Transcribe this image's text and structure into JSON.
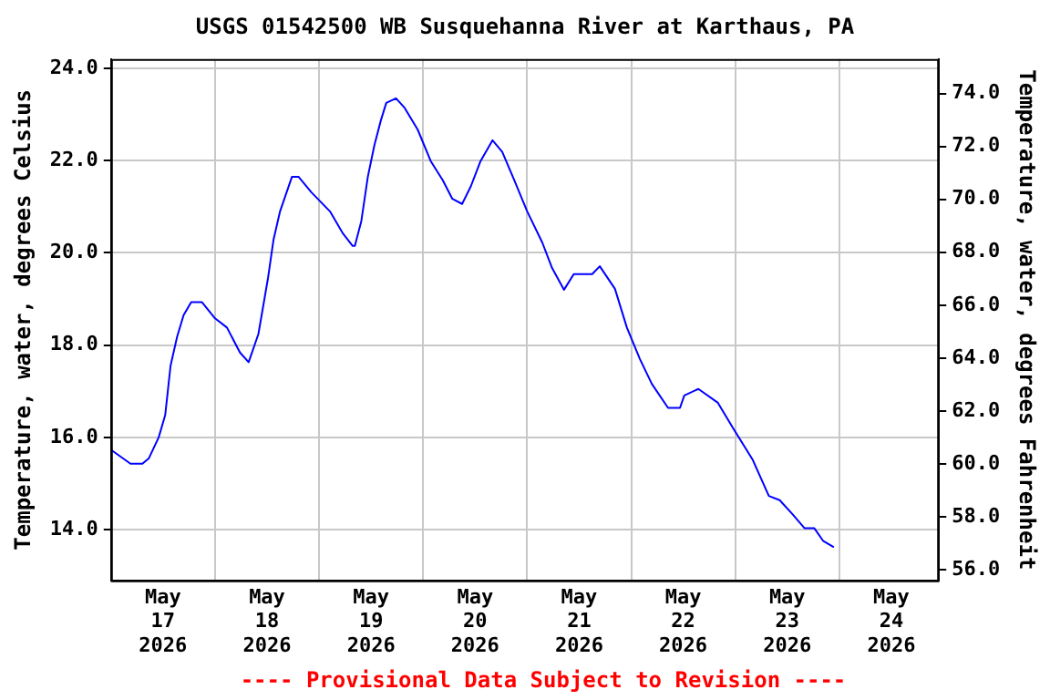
{
  "chart_data": {
    "type": "line",
    "title": "USGS 01542500 WB Susquehanna River at Karthaus, PA",
    "ylabel": "Temperature, water, degrees Celsius",
    "y2label": "Temperature, water, degrees Fahrenheit",
    "annotations": [
      "---- Provisional Data Subject to Revision ----"
    ],
    "x": [
      "2026-05-17T00:00",
      "2026-05-17T04:30",
      "2026-05-17T07:15",
      "2026-05-17T08:45",
      "2026-05-17T11:00",
      "2026-05-17T12:30",
      "2026-05-17T13:45",
      "2026-05-17T15:15",
      "2026-05-17T16:45",
      "2026-05-17T18:30",
      "2026-05-17T21:00",
      "2026-05-18T00:00",
      "2026-05-18T02:45",
      "2026-05-18T05:45",
      "2026-05-18T07:45",
      "2026-05-18T10:00",
      "2026-05-18T12:15",
      "2026-05-18T13:30",
      "2026-05-18T15:00",
      "2026-05-18T17:45",
      "2026-05-18T19:15",
      "2026-05-18T22:15",
      "2026-05-19T02:30",
      "2026-05-19T05:30",
      "2026-05-19T07:45",
      "2026-05-19T08:15",
      "2026-05-19T09:45",
      "2026-05-19T11:15",
      "2026-05-19T12:45",
      "2026-05-19T14:15",
      "2026-05-19T15:30",
      "2026-05-19T17:45",
      "2026-05-19T19:45",
      "2026-05-19T22:45",
      "2026-05-20T01:45",
      "2026-05-20T04:30",
      "2026-05-20T06:45",
      "2026-05-20T09:00",
      "2026-05-20T11:00",
      "2026-05-20T13:15",
      "2026-05-20T16:00",
      "2026-05-20T18:15",
      "2026-05-20T21:00",
      "2026-05-21T00:00",
      "2026-05-21T03:30",
      "2026-05-21T05:45",
      "2026-05-21T08:30",
      "2026-05-21T10:45",
      "2026-05-21T15:00",
      "2026-05-21T16:45",
      "2026-05-21T20:15",
      "2026-05-21T23:00",
      "2026-05-22T02:00",
      "2026-05-22T04:45",
      "2026-05-22T08:30",
      "2026-05-22T11:15",
      "2026-05-22T12:15",
      "2026-05-22T15:30",
      "2026-05-22T20:00",
      "2026-05-22T23:30",
      "2026-05-23T04:00",
      "2026-05-23T07:45",
      "2026-05-23T10:15",
      "2026-05-23T13:15",
      "2026-05-23T16:00",
      "2026-05-23T18:15",
      "2026-05-23T20:15",
      "2026-05-23T22:45"
    ],
    "series": [
      {
        "color": "#0000ff",
        "values": [
          15.73,
          15.43,
          15.43,
          15.55,
          16.0,
          16.48,
          17.56,
          18.18,
          18.65,
          18.93,
          18.93,
          18.58,
          18.38,
          17.84,
          17.63,
          18.24,
          19.47,
          20.29,
          20.9,
          21.65,
          21.65,
          21.31,
          20.9,
          20.42,
          20.15,
          20.15,
          20.69,
          21.65,
          22.33,
          22.87,
          23.25,
          23.35,
          23.14,
          22.67,
          21.99,
          21.58,
          21.17,
          21.06,
          21.44,
          21.99,
          22.44,
          22.19,
          21.58,
          20.9,
          20.22,
          19.67,
          19.2,
          19.54,
          19.54,
          19.71,
          19.22,
          18.38,
          17.7,
          17.16,
          16.64,
          16.64,
          16.91,
          17.05,
          16.75,
          16.2,
          15.52,
          14.73,
          14.64,
          14.33,
          14.03,
          14.03,
          13.76,
          13.62
        ]
      }
    ],
    "xlim": [
      "2026-05-17T00:00",
      "2026-05-24T23:00"
    ],
    "xticks": [
      {
        "value": "2026-05-17T12:00",
        "label": "May 17 2026"
      },
      {
        "value": "2026-05-18T00:00",
        "label": null
      },
      {
        "value": "2026-05-18T12:00",
        "label": "May 18 2026"
      },
      {
        "value": "2026-05-19T00:00",
        "label": null
      },
      {
        "value": "2026-05-19T12:00",
        "label": "May 19 2026"
      },
      {
        "value": "2026-05-20T00:00",
        "label": null
      },
      {
        "value": "2026-05-20T12:00",
        "label": "May 20 2026"
      },
      {
        "value": "2026-05-21T00:00",
        "label": null
      },
      {
        "value": "2026-05-21T12:00",
        "label": "May 21 2026"
      },
      {
        "value": "2026-05-22T00:00",
        "label": null
      },
      {
        "value": "2026-05-22T12:00",
        "label": "May 22 2026"
      },
      {
        "value": "2026-05-23T00:00",
        "label": null
      },
      {
        "value": "2026-05-23T12:00",
        "label": "May 23 2026"
      },
      {
        "value": "2026-05-24T00:00",
        "label": null
      },
      {
        "value": "2026-05-24T12:00",
        "label": "May 24 2026"
      }
    ],
    "ylim": [
      12.9,
      24.2
    ],
    "yticks": [
      {
        "value": 14,
        "label": "14.0"
      },
      {
        "value": 16,
        "label": "16.0"
      },
      {
        "value": 18,
        "label": "18.0"
      },
      {
        "value": 20,
        "label": "20.0"
      },
      {
        "value": 22,
        "label": "22.0"
      },
      {
        "value": 24,
        "label": "24.0"
      }
    ],
    "y2lim": [
      55.6,
      75.3
    ],
    "y2ticks": [
      {
        "value": 56,
        "label": "56.0"
      },
      {
        "value": 58,
        "label": "58.0"
      },
      {
        "value": 60,
        "label": "60.0"
      },
      {
        "value": 62,
        "label": "62.0"
      },
      {
        "value": 64,
        "label": "64.0"
      },
      {
        "value": 66,
        "label": "66.0"
      },
      {
        "value": 68,
        "label": "68.0"
      },
      {
        "value": 70,
        "label": "70.0"
      },
      {
        "value": 72,
        "label": "72.0"
      },
      {
        "value": 74,
        "label": "74.0"
      }
    ],
    "grid": true,
    "legend": false,
    "marker": "none",
    "line_style": "solid"
  }
}
